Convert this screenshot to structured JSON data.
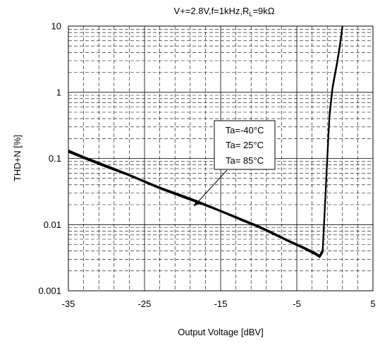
{
  "chart_data": {
    "type": "line",
    "title_parts": {
      "pre": "V+=2.8V,f=1kHz,R",
      "sub": "L",
      "post": "=9kΩ"
    },
    "xlabel": "Output Voltage [dBV]",
    "ylabel": "THD+N [%]",
    "xlim": [
      -35,
      5
    ],
    "ylim": [
      0.001,
      10
    ],
    "yscale": "log",
    "x_ticks": [
      "-35",
      "-25",
      "-15",
      "-5",
      "5"
    ],
    "y_ticks": [
      "10",
      "1",
      "0.1",
      "0.01",
      "0.001"
    ],
    "grid": true,
    "legend": {
      "entries": [
        "Ta=-40°C",
        "Ta= 25°C",
        "Ta= 85°C"
      ],
      "arrow_target": {
        "x": -18.5,
        "y": 0.019
      }
    },
    "series": [
      {
        "values": [
          [
            -35,
            0.13
          ],
          [
            -33,
            0.104
          ],
          [
            -30,
            0.076
          ],
          [
            -27,
            0.056
          ],
          [
            -25,
            0.045
          ],
          [
            -23,
            0.036
          ],
          [
            -20,
            0.027
          ],
          [
            -18,
            0.022
          ],
          [
            -15,
            0.016
          ],
          [
            -12,
            0.0115
          ],
          [
            -10,
            0.0093
          ],
          [
            -8,
            0.0072
          ],
          [
            -6,
            0.0056
          ],
          [
            -4,
            0.0044
          ],
          [
            -2.5,
            0.0036
          ],
          [
            -2,
            0.0033
          ],
          [
            -1.6,
            0.004
          ],
          [
            -1.3,
            0.02
          ],
          [
            -1.0,
            0.1
          ],
          [
            -0.7,
            0.45
          ],
          [
            -0.3,
            1.2
          ],
          [
            0.3,
            2.8
          ],
          [
            0.7,
            5.5
          ],
          [
            1.0,
            10
          ]
        ]
      },
      {
        "values": [
          [
            -35,
            0.125
          ],
          [
            -33,
            0.101
          ],
          [
            -30,
            0.074
          ],
          [
            -27,
            0.055
          ],
          [
            -25,
            0.044
          ],
          [
            -23,
            0.035
          ],
          [
            -20,
            0.026
          ],
          [
            -18,
            0.0215
          ],
          [
            -15,
            0.0158
          ],
          [
            -12,
            0.0113
          ],
          [
            -10,
            0.0091
          ],
          [
            -8,
            0.0071
          ],
          [
            -6,
            0.0055
          ],
          [
            -4,
            0.0043
          ],
          [
            -2.5,
            0.0035
          ],
          [
            -2,
            0.0032
          ],
          [
            -1.6,
            0.0038
          ],
          [
            -1.3,
            0.019
          ],
          [
            -1.0,
            0.095
          ],
          [
            -0.7,
            0.43
          ],
          [
            -0.3,
            1.15
          ],
          [
            0.3,
            2.7
          ],
          [
            0.7,
            5.3
          ],
          [
            1.0,
            10
          ]
        ]
      },
      {
        "values": [
          [
            -35,
            0.133
          ],
          [
            -33,
            0.106
          ],
          [
            -30,
            0.078
          ],
          [
            -27,
            0.057
          ],
          [
            -25,
            0.0455
          ],
          [
            -23,
            0.0365
          ],
          [
            -20,
            0.0275
          ],
          [
            -18,
            0.0225
          ],
          [
            -15,
            0.0163
          ],
          [
            -12,
            0.0118
          ],
          [
            -10,
            0.0095
          ],
          [
            -8,
            0.0074
          ],
          [
            -6,
            0.0057
          ],
          [
            -4,
            0.0045
          ],
          [
            -2.5,
            0.0037
          ],
          [
            -2,
            0.0034
          ],
          [
            -1.6,
            0.0042
          ],
          [
            -1.3,
            0.021
          ],
          [
            -1.0,
            0.105
          ],
          [
            -0.7,
            0.47
          ],
          [
            -0.3,
            1.25
          ],
          [
            0.3,
            2.9
          ],
          [
            0.7,
            5.7
          ],
          [
            1.0,
            10
          ]
        ]
      }
    ]
  }
}
